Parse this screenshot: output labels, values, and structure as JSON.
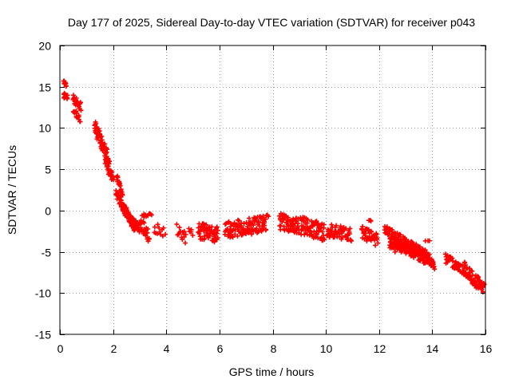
{
  "chart_data": {
    "type": "scatter",
    "title": "Day 177 of 2025, Sidereal Day-to-day VTEC variation (SDTVAR) for receiver p043",
    "xlabel": "GPS time / hours",
    "ylabel": "SDTVAR / TECUs",
    "xlim": [
      0,
      16
    ],
    "ylim": [
      -15,
      20
    ],
    "xticks": [
      0,
      2,
      4,
      6,
      8,
      10,
      12,
      14,
      16
    ],
    "yticks": [
      20,
      15,
      10,
      5,
      0,
      -5,
      -10,
      -15
    ],
    "grid": true,
    "marker": "+",
    "color": "#ff0000",
    "series": [
      {
        "name": "SDTVAR",
        "segments": [
          {
            "x0": 0.15,
            "x1": 0.25,
            "y0": 15.6,
            "y1": 15.2,
            "spread": 0.5,
            "n": 10
          },
          {
            "x0": 0.15,
            "x1": 0.28,
            "y0": 14.0,
            "y1": 13.6,
            "spread": 0.7,
            "n": 12
          },
          {
            "x0": 0.5,
            "x1": 0.78,
            "y0": 13.6,
            "y1": 12.6,
            "spread": 1.0,
            "n": 24
          },
          {
            "x0": 0.52,
            "x1": 0.75,
            "y0": 12.0,
            "y1": 11.0,
            "spread": 0.8,
            "n": 16
          },
          {
            "x0": 1.3,
            "x1": 1.85,
            "y0": 10.2,
            "y1": 6.2,
            "spread": 1.6,
            "n": 70
          },
          {
            "x0": 1.7,
            "x1": 2.0,
            "y0": 6.2,
            "y1": 3.8,
            "spread": 1.2,
            "n": 35
          },
          {
            "x0": 2.15,
            "x1": 2.35,
            "y0": 4.2,
            "y1": 1.8,
            "spread": 0.9,
            "n": 18
          },
          {
            "x0": 2.1,
            "x1": 2.65,
            "y0": 2.2,
            "y1": -1.2,
            "spread": 1.2,
            "n": 55
          },
          {
            "x0": 2.3,
            "x1": 2.85,
            "y0": 0.8,
            "y1": -2.4,
            "spread": 1.0,
            "n": 50
          },
          {
            "x0": 2.65,
            "x1": 3.0,
            "y0": -0.8,
            "y1": -2.2,
            "spread": 0.8,
            "n": 25
          },
          {
            "x0": 3.0,
            "x1": 3.35,
            "y0": -1.5,
            "y1": -3.2,
            "spread": 1.6,
            "n": 28
          },
          {
            "x0": 3.1,
            "x1": 3.45,
            "y0": -0.6,
            "y1": -0.6,
            "spread": 0.5,
            "n": 10
          },
          {
            "x0": 3.55,
            "x1": 3.95,
            "y0": -2.0,
            "y1": -2.8,
            "spread": 1.5,
            "n": 12
          },
          {
            "x0": 4.4,
            "x1": 4.75,
            "y0": -2.4,
            "y1": -3.4,
            "spread": 1.8,
            "n": 14
          },
          {
            "x0": 4.85,
            "x1": 5.0,
            "y0": -2.2,
            "y1": -2.8,
            "spread": 0.8,
            "n": 5
          },
          {
            "x0": 5.2,
            "x1": 5.95,
            "y0": -2.4,
            "y1": -3.0,
            "spread": 2.0,
            "n": 60
          },
          {
            "x0": 6.2,
            "x1": 7.75,
            "y0": -2.4,
            "y1": -1.6,
            "spread": 2.0,
            "n": 120
          },
          {
            "x0": 7.75,
            "x1": 7.85,
            "y0": -0.6,
            "y1": -0.6,
            "spread": 0.3,
            "n": 3
          },
          {
            "x0": 8.25,
            "x1": 9.0,
            "y0": -1.2,
            "y1": -2.0,
            "spread": 2.2,
            "n": 65
          },
          {
            "x0": 9.05,
            "x1": 9.95,
            "y0": -1.8,
            "y1": -2.6,
            "spread": 2.2,
            "n": 75
          },
          {
            "x0": 10.05,
            "x1": 10.95,
            "y0": -2.4,
            "y1": -2.9,
            "spread": 1.6,
            "n": 65
          },
          {
            "x0": 11.35,
            "x1": 11.95,
            "y0": -2.6,
            "y1": -3.6,
            "spread": 1.6,
            "n": 50
          },
          {
            "x0": 11.6,
            "x1": 11.7,
            "y0": -1.3,
            "y1": -1.3,
            "spread": 0.3,
            "n": 3
          },
          {
            "x0": 12.2,
            "x1": 13.9,
            "y0": -2.2,
            "y1": -5.6,
            "spread": 1.0,
            "n": 110
          },
          {
            "x0": 12.4,
            "x1": 14.1,
            "y0": -3.6,
            "y1": -6.6,
            "spread": 1.0,
            "n": 110
          },
          {
            "x0": 12.4,
            "x1": 13.3,
            "y0": -4.4,
            "y1": -4.6,
            "spread": 1.2,
            "n": 40
          },
          {
            "x0": 13.75,
            "x1": 13.9,
            "y0": -3.8,
            "y1": -3.8,
            "spread": 0.3,
            "n": 3
          },
          {
            "x0": 14.5,
            "x1": 15.2,
            "y0": -5.8,
            "y1": -7.2,
            "spread": 1.2,
            "n": 45
          },
          {
            "x0": 15.2,
            "x1": 15.95,
            "y0": -7.0,
            "y1": -9.6,
            "spread": 1.6,
            "n": 70
          }
        ]
      }
    ]
  }
}
